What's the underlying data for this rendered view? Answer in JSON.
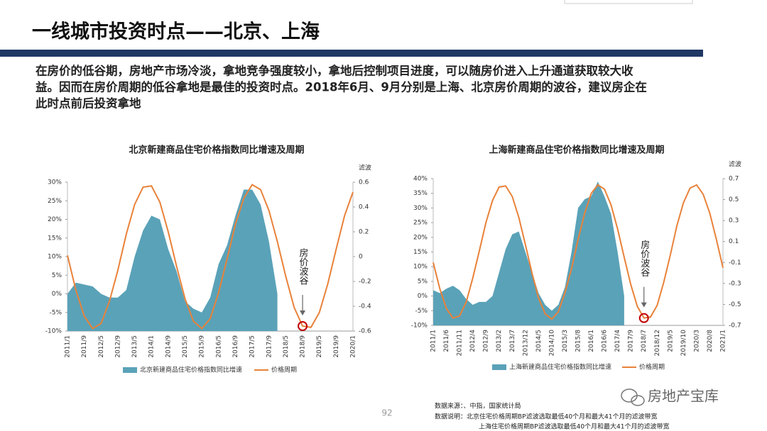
{
  "slide": {
    "title": "一线城市投资时点——北京、上海",
    "body": [
      "在房价的低谷期，房地产市场冷淡，拿地竞争强度较小，拿地后控制项目进度，可以随房价进入上升通道获取较大收",
      "益。因而在房价周期的低谷拿地是最佳的投资时点。2018年6月、9月分别是上海、北京房价周期的波谷，建议房企在",
      "此时点前后投资拿地"
    ],
    "page": "92",
    "notes": [
      "数据来源：、中指，国家统计局",
      "数据说明：北京住宅价格周期BP滤波选取最低40个月和最大41个月的滤波带宽",
      "上海住宅价格周期BP滤波选取最低40个月和最大41个月的滤波带宽"
    ],
    "watermark": "房地产宝库"
  },
  "chart_data": [
    {
      "type": "combo",
      "title": "北京新建商品住宅价格指数同比增速及周期",
      "categories": [
        "2011/1",
        null,
        "2011/9",
        null,
        "2012/5",
        null,
        "2012/9",
        null,
        "2013/5",
        null,
        "2014/1",
        null,
        "2014/9",
        null,
        "2015/5",
        null,
        "2015/9",
        null,
        "2016/5",
        null,
        "2016/9",
        null,
        "2017/5",
        null,
        "2017/9",
        null,
        "2018/5",
        null,
        "2018/9",
        null,
        "2019/5",
        null,
        "2019/9",
        null,
        "2020/1"
      ],
      "series": [
        {
          "name": "北京新建商品住宅价格指数同比增速",
          "type": "area",
          "color": "#5aa2b8",
          "values": [
            0,
            3,
            2.5,
            2,
            0,
            -1,
            -1,
            1,
            10,
            17,
            21,
            20,
            12,
            6,
            -2,
            -4,
            -5,
            -1,
            8,
            13,
            21,
            28,
            28,
            24,
            14,
            0,
            null,
            null,
            null,
            null,
            null,
            null,
            null,
            null,
            null
          ]
        },
        {
          "name": "价格周期",
          "type": "line",
          "axis": "y2",
          "color": "#e8823a",
          "values": [
            0.01,
            -0.27,
            -0.48,
            -0.58,
            -0.54,
            -0.36,
            -0.11,
            0.18,
            0.42,
            0.56,
            0.57,
            0.44,
            0.2,
            -0.08,
            -0.34,
            -0.52,
            -0.58,
            -0.5,
            -0.29,
            -0.02,
            0.26,
            0.47,
            0.58,
            0.54,
            0.37,
            0.12,
            -0.16,
            -0.41,
            -0.56,
            -0.57,
            -0.45,
            -0.22,
            0.06,
            0.33,
            0.52
          ]
        }
      ],
      "ylim": [
        -10,
        30
      ],
      "yticks": [
        {
          "value": -10,
          "label": "-10%"
        },
        {
          "value": -5,
          "label": "-5%"
        },
        {
          "value": 0,
          "label": "0%"
        },
        {
          "value": 5,
          "label": "5%"
        },
        {
          "value": 10,
          "label": "10%"
        },
        {
          "value": 15,
          "label": "15%"
        },
        {
          "value": 20,
          "label": "20%"
        },
        {
          "value": 25,
          "label": "25%"
        },
        {
          "value": 30,
          "label": "30%"
        }
      ],
      "y2lim": [
        -0.6,
        0.6
      ],
      "y2ticks": [
        -0.6,
        -0.4,
        -0.2,
        0,
        0.2,
        0.4,
        0.6
      ],
      "y2label": "滤波",
      "annotation": {
        "text": "房价波谷",
        "x": "2018/9"
      }
    },
    {
      "type": "combo",
      "title": "上海新建商品住宅价格指数同比增速及周期",
      "categories": [
        "2011/1",
        null,
        "2011/6",
        null,
        "2011/11",
        null,
        "2012/4",
        null,
        "2012/9",
        null,
        "2013/2",
        null,
        "2013/7",
        null,
        "2013/12",
        null,
        "2014/5",
        null,
        "2014/10",
        null,
        "2015/3",
        null,
        "2015/8",
        null,
        "2016/1",
        null,
        "2016/6",
        null,
        "2017/4",
        null,
        "2017/9",
        null,
        "2018/7",
        null,
        "2018/12",
        null,
        "2019/5",
        null,
        "2019/10",
        null,
        "2020/3",
        null,
        "2020/8",
        null,
        "2021/1"
      ],
      "series": [
        {
          "name": "上海新建商品住宅价格指数同比增速",
          "type": "area",
          "color": "#5aa2b8",
          "values": [
            2,
            1,
            2.5,
            3.5,
            2,
            -1,
            -3,
            -2,
            -2,
            0,
            8,
            16,
            21,
            22,
            15,
            8,
            1,
            -3,
            -5,
            -3,
            3,
            15,
            30,
            33,
            34,
            39,
            34,
            28,
            15,
            0,
            null,
            null,
            null,
            null,
            null,
            null,
            null,
            null,
            null,
            null,
            null,
            null,
            null,
            null,
            null
          ]
        },
        {
          "name": "价格周期",
          "type": "line",
          "axis": "y2",
          "color": "#e8823a",
          "values": [
            -0.1,
            -0.35,
            -0.54,
            -0.63,
            -0.61,
            -0.48,
            -0.25,
            0.01,
            0.28,
            0.49,
            0.62,
            0.63,
            0.53,
            0.33,
            0.07,
            -0.2,
            -0.44,
            -0.59,
            -0.64,
            -0.57,
            -0.39,
            -0.16,
            0.12,
            0.37,
            0.56,
            0.64,
            0.6,
            0.45,
            0.22,
            -0.05,
            -0.31,
            -0.52,
            -0.63,
            -0.62,
            -0.51,
            -0.29,
            -0.03,
            0.25,
            0.47,
            0.61,
            0.64,
            0.55,
            0.37,
            0.12,
            -0.15
          ]
        }
      ],
      "ylim": [
        -10,
        40
      ],
      "yticks": [
        {
          "value": -10,
          "label": "-10%"
        },
        {
          "value": -5,
          "label": "-5%"
        },
        {
          "value": 0,
          "label": "0%"
        },
        {
          "value": 5,
          "label": "5%"
        },
        {
          "value": 10,
          "label": "10%"
        },
        {
          "value": 15,
          "label": "15%"
        },
        {
          "value": 20,
          "label": "20%"
        },
        {
          "value": 25,
          "label": "25%"
        },
        {
          "value": 30,
          "label": "30%"
        },
        {
          "value": 35,
          "label": "35%"
        },
        {
          "value": 40,
          "label": "40%"
        }
      ],
      "y2lim": [
        -0.7,
        0.7
      ],
      "y2ticks": [
        -0.7,
        -0.5,
        -0.3,
        -0.1,
        0.1,
        0.3,
        0.5,
        0.7
      ],
      "y2label": "滤波",
      "annotation": {
        "text": "房价波谷",
        "x": "2018/7"
      }
    }
  ]
}
